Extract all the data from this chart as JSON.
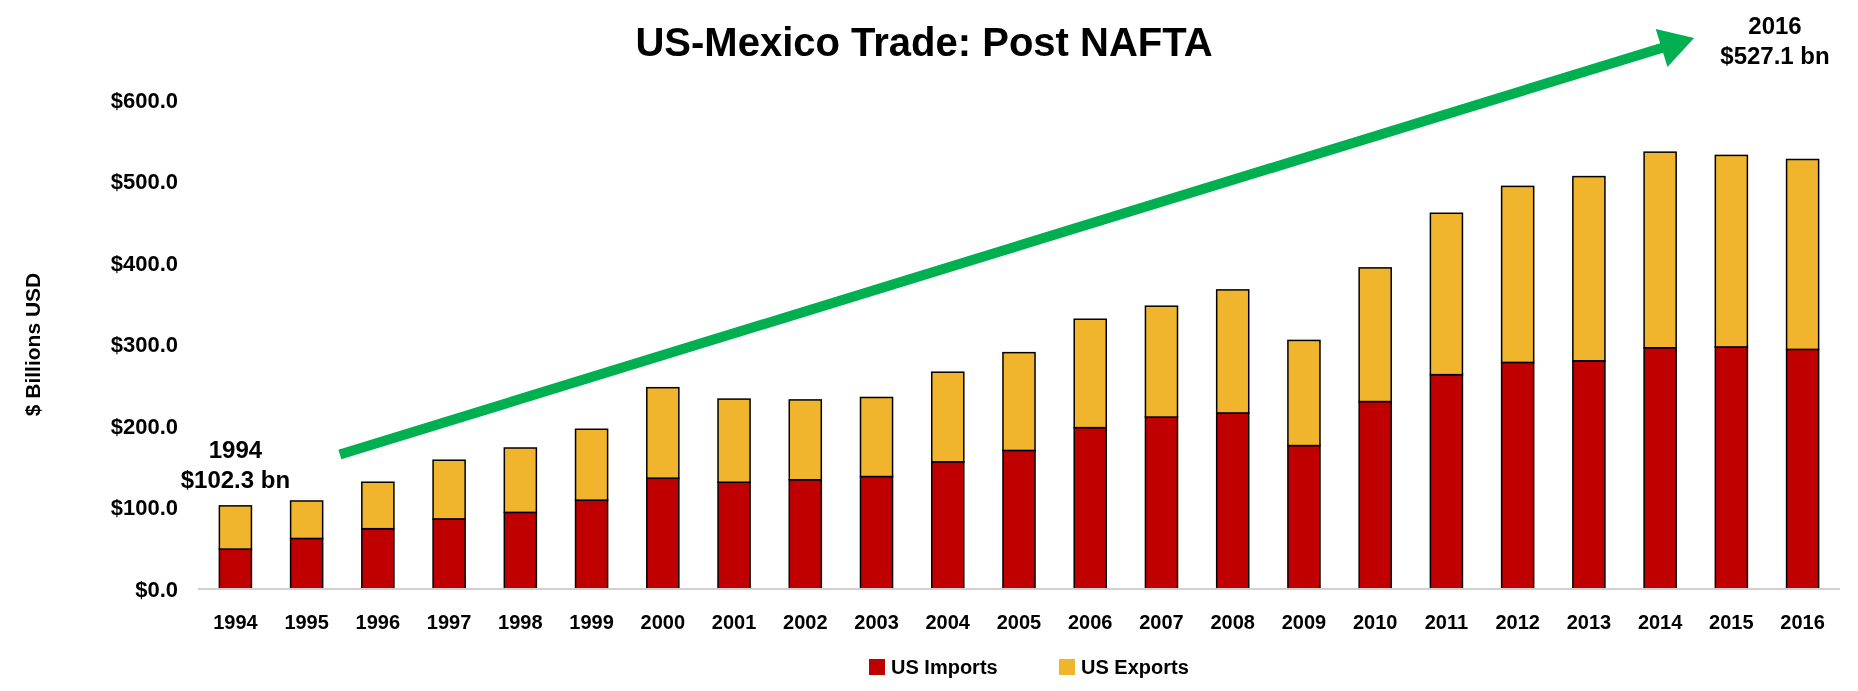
{
  "chart_data": {
    "type": "bar",
    "title": "US-Mexico Trade: Post NAFTA",
    "ylabel": "$ Billions USD",
    "categories": [
      "1994",
      "1995",
      "1996",
      "1997",
      "1998",
      "1999",
      "2000",
      "2001",
      "2002",
      "2003",
      "2004",
      "2005",
      "2006",
      "2007",
      "2008",
      "2009",
      "2010",
      "2011",
      "2012",
      "2013",
      "2014",
      "2015",
      "2016"
    ],
    "stacked": true,
    "series": [
      {
        "name": "US Imports",
        "color": "#c00000",
        "values": [
          49,
          62,
          74,
          86,
          94,
          109,
          136,
          131,
          134,
          138,
          156,
          170,
          198,
          211,
          216,
          176,
          230,
          263,
          278,
          280,
          296,
          297,
          294
        ]
      },
      {
        "name": "US Exports",
        "color": "#f0b52c",
        "values": [
          53,
          46,
          57,
          72,
          79,
          87,
          111,
          102,
          98,
          97,
          110,
          120,
          133,
          136,
          151,
          129,
          164,
          198,
          216,
          226,
          240,
          235,
          233
        ]
      }
    ],
    "ylim": [
      0,
      600
    ],
    "yticks": [
      {
        "value": 0,
        "label": "$0.0"
      },
      {
        "value": 100,
        "label": "$100.0"
      },
      {
        "value": 200,
        "label": "$200.0"
      },
      {
        "value": 300,
        "label": "$300.0"
      },
      {
        "value": 400,
        "label": "$400.0"
      },
      {
        "value": 500,
        "label": "$500.0"
      },
      {
        "value": 600,
        "label": "$600.0"
      }
    ],
    "grid": false,
    "legend": "bottom",
    "annotations": [
      {
        "text": "1994\n$102.3 bn",
        "x": "1994",
        "y": 102.3
      },
      "2016\n$527.1 bn"
    ]
  }
}
